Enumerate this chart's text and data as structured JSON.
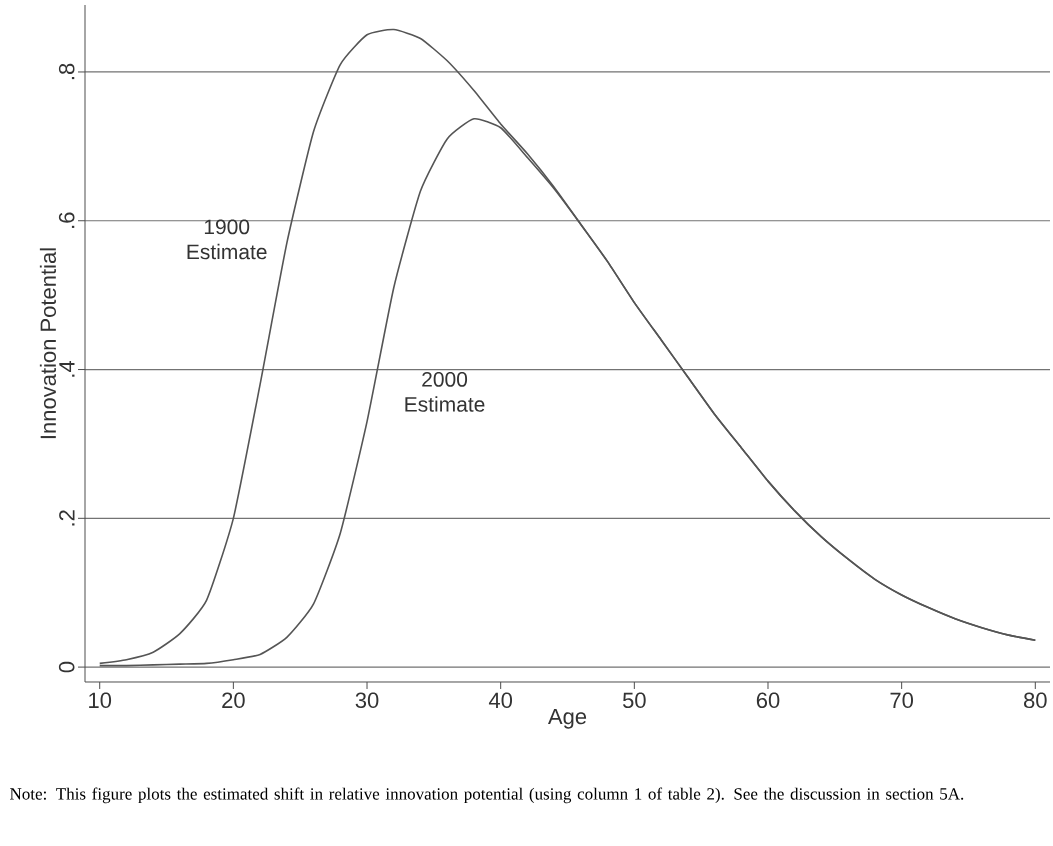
{
  "chart_data": {
    "type": "line",
    "xlabel": "Age",
    "ylabel": "Innovation Potential",
    "x": [
      10,
      12,
      14,
      16,
      18,
      20,
      22,
      24,
      26,
      28,
      30,
      32,
      34,
      36,
      38,
      40,
      42,
      44,
      46,
      48,
      50,
      52,
      54,
      56,
      58,
      60,
      62,
      64,
      66,
      68,
      70,
      72,
      74,
      76,
      78,
      80
    ],
    "series": [
      {
        "name": "1900 Estimate",
        "color": "#555555",
        "values": [
          0.005,
          0.01,
          0.02,
          0.045,
          0.09,
          0.2,
          0.38,
          0.57,
          0.72,
          0.81,
          0.85,
          0.857,
          0.845,
          0.815,
          0.775,
          0.73,
          0.69,
          0.645,
          0.595,
          0.545,
          0.49,
          0.44,
          0.39,
          0.34,
          0.295,
          0.25,
          0.21,
          0.175,
          0.145,
          0.118,
          0.097,
          0.08,
          0.065,
          0.053,
          0.043,
          0.036
        ]
      },
      {
        "name": "2000 Estimate",
        "color": "#555555",
        "values": [
          0.002,
          0.002,
          0.003,
          0.004,
          0.005,
          0.01,
          0.017,
          0.04,
          0.085,
          0.18,
          0.33,
          0.51,
          0.64,
          0.71,
          0.737,
          0.725,
          0.685,
          0.643,
          0.595,
          0.545,
          0.49,
          0.44,
          0.39,
          0.34,
          0.295,
          0.25,
          0.21,
          0.175,
          0.145,
          0.118,
          0.097,
          0.08,
          0.065,
          0.053,
          0.043,
          0.036
        ]
      }
    ],
    "xlim": [
      8.9,
      81.1
    ],
    "ylim": [
      -0.02,
      0.89
    ],
    "xticks": [
      10,
      20,
      30,
      40,
      50,
      60,
      70,
      80
    ],
    "yticks": [
      {
        "value": 0,
        "label": "0"
      },
      {
        "value": 0.2,
        "label": ".2"
      },
      {
        "value": 0.4,
        "label": ".4"
      },
      {
        "value": 0.6,
        "label": ".6"
      },
      {
        "value": 0.8,
        "label": ".8"
      }
    ],
    "grid": "y",
    "marker": "none",
    "line_style": "solid",
    "legend": false,
    "annotations": [
      "Note: This figure plots the estimated shift in relative innovation potential (using column 1 of table 2). See the discussion in section 5A."
    ]
  }
}
